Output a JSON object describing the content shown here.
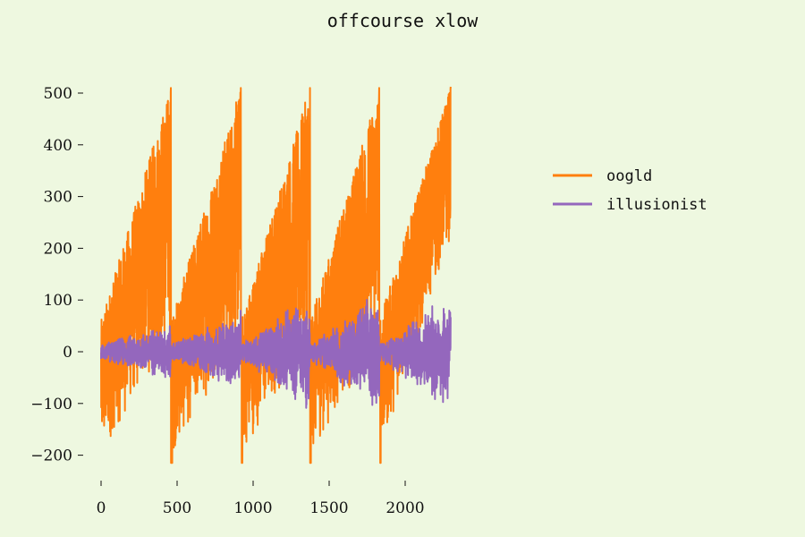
{
  "chart_data": {
    "type": "line",
    "title": "offcourse xlow",
    "xlabel": "",
    "ylabel": "",
    "xlim": [
      -100,
      2400
    ],
    "ylim": [
      -260,
      540
    ],
    "xticks": [
      0,
      500,
      1000,
      1500,
      2000
    ],
    "xtick_labels": [
      "0",
      "500",
      "1000",
      "1500",
      "2000"
    ],
    "yticks": [
      -200,
      -100,
      0,
      100,
      200,
      300,
      400,
      500
    ],
    "ytick_labels": [
      "−200",
      "−100",
      "0",
      "100",
      "200",
      "300",
      "400",
      "500"
    ],
    "grid": false,
    "legend_position": "right",
    "n_points": 2300,
    "x_range": [
      0,
      2299
    ],
    "series": [
      {
        "name": "oogld",
        "color": "#ff7f0e",
        "pattern": "sawtooth with heavy noise, 5 cycles of ~460 points each",
        "cycle_starts": [
          0,
          460,
          920,
          1375,
          1830
        ],
        "envelope_upper": [
          {
            "x": 0,
            "y": 80
          },
          {
            "x": 455,
            "y": 515
          },
          {
            "x": 460,
            "y": 50
          },
          {
            "x": 915,
            "y": 515
          },
          {
            "x": 920,
            "y": 50
          },
          {
            "x": 1370,
            "y": 515
          },
          {
            "x": 1375,
            "y": 55
          },
          {
            "x": 1825,
            "y": 520
          },
          {
            "x": 1830,
            "y": 90
          },
          {
            "x": 2299,
            "y": 515
          }
        ],
        "envelope_lower": [
          {
            "x": 0,
            "y": -130
          },
          {
            "x": 20,
            "y": -200
          },
          {
            "x": 455,
            "y": 20
          },
          {
            "x": 460,
            "y": -220
          },
          {
            "x": 915,
            "y": 20
          },
          {
            "x": 920,
            "y": -220
          },
          {
            "x": 1370,
            "y": 20
          },
          {
            "x": 1375,
            "y": -220
          },
          {
            "x": 1825,
            "y": 20
          },
          {
            "x": 1830,
            "y": -225
          },
          {
            "x": 2299,
            "y": 230
          }
        ],
        "min": -225,
        "max": 520
      },
      {
        "name": "illusionist",
        "color": "#9467bd",
        "pattern": "noise around 0 whose amplitude grows within each cycle",
        "min": -145,
        "max": 140,
        "amplitude_by_cycle_end": [
          40,
          60,
          95,
          100,
          100
        ]
      }
    ]
  },
  "legend": {
    "items": [
      {
        "label": "oogld",
        "color": "#ff7f0e"
      },
      {
        "label": "illusionist",
        "color": "#9467bd"
      }
    ]
  }
}
